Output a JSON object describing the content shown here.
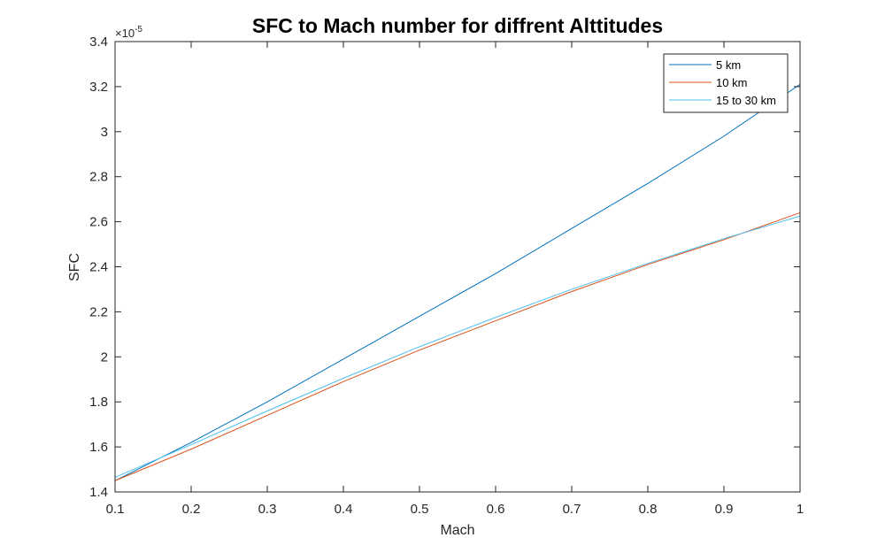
{
  "chart_data": {
    "type": "line",
    "title": "SFC to Mach number for diffrent Alttitudes",
    "xlabel": "Mach",
    "ylabel": "SFC",
    "xlim": [
      0.1,
      1
    ],
    "ylim": [
      1.4e-05,
      3.4e-05
    ],
    "x_ticks": [
      0.1,
      0.2,
      0.3,
      0.4,
      0.5,
      0.6,
      0.7,
      0.8,
      0.9,
      1
    ],
    "x_tick_labels": [
      "0.1",
      "0.2",
      "0.3",
      "0.4",
      "0.5",
      "0.6",
      "0.7",
      "0.8",
      "0.9",
      "1"
    ],
    "y_ticks": [
      1.4,
      1.6,
      1.8,
      2.0,
      2.2,
      2.4,
      2.6,
      2.8,
      3.0,
      3.2,
      3.4
    ],
    "y_tick_labels": [
      "1.4",
      "1.6",
      "1.8",
      "2",
      "2.2",
      "2.4",
      "2.6",
      "2.8",
      "3",
      "3.2",
      "3.4"
    ],
    "y_exponent": {
      "base": "×10",
      "power": "-5"
    },
    "grid": false,
    "legend_position": "top-right",
    "x": [
      0.1,
      0.2,
      0.3,
      0.4,
      0.5,
      0.6,
      0.7,
      0.8,
      0.9,
      1.0
    ],
    "series": [
      {
        "name": "5 km",
        "color": "#0072BD",
        "values": [
          1.45e-05,
          1.62e-05,
          1.8e-05,
          1.99e-05,
          2.18e-05,
          2.37e-05,
          2.57e-05,
          2.77e-05,
          2.98e-05,
          3.21e-05
        ]
      },
      {
        "name": "10 km",
        "color": "#D95319",
        "values": [
          1.45e-05,
          1.59e-05,
          1.74e-05,
          1.89e-05,
          2.03e-05,
          2.16e-05,
          2.29e-05,
          2.41e-05,
          2.52e-05,
          2.64e-05
        ]
      },
      {
        "name": "15 to 30 km",
        "color": "#4DBEEE",
        "values": [
          1.465e-05,
          1.61e-05,
          1.76e-05,
          1.905e-05,
          2.045e-05,
          2.175e-05,
          2.3e-05,
          2.415e-05,
          2.525e-05,
          2.625e-05
        ]
      }
    ]
  }
}
